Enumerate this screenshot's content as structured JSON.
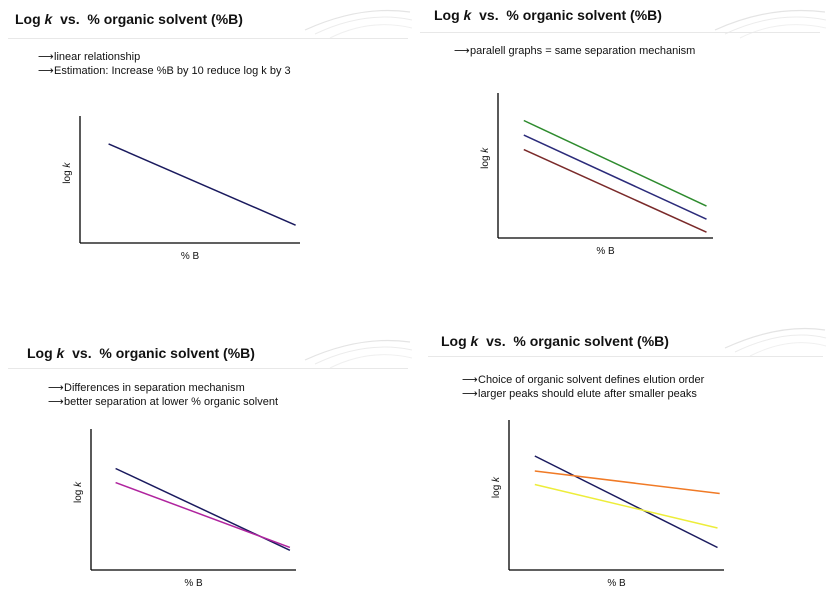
{
  "panels": [
    {
      "title_prefix": "Log ",
      "title_var": "k",
      "title_suffix": "  vs.  % organic solvent (%B)",
      "notes": [
        "linear relationship",
        "Estimation: Increase %B by 10 reduce log k by 3"
      ]
    },
    {
      "title_prefix": "Log ",
      "title_var": "k",
      "title_suffix": "  vs.  % organic solvent (%B)",
      "notes": [
        "paralell graphs = same separation mechanism"
      ]
    },
    {
      "title_prefix": "Log ",
      "title_var": "k",
      "title_suffix": "  vs.  % organic solvent (%B)",
      "notes": [
        "Differences in separation mechanism",
        "better separation at lower % organic solvent"
      ]
    },
    {
      "title_prefix": "Log ",
      "title_var": "k",
      "title_suffix": "  vs.  % organic solvent (%B)",
      "notes": [
        "Choice of organic solvent defines elution order",
        "larger peaks should elute after smaller peaks"
      ]
    }
  ],
  "arrow_glyph": "⟶",
  "chart_data": [
    {
      "type": "line",
      "xlabel": "% B",
      "ylabel_prefix": "log ",
      "ylabel_var": "k",
      "xlim": [
        0,
        100
      ],
      "ylim": [
        0,
        100
      ],
      "series": [
        {
          "color": "#1a1a5e",
          "x": [
            13,
            98
          ],
          "y": [
            78,
            14
          ]
        }
      ]
    },
    {
      "type": "line",
      "xlabel": "% B",
      "ylabel_prefix": "log ",
      "ylabel_var": "k",
      "xlim": [
        0,
        100
      ],
      "ylim": [
        0,
        100
      ],
      "series": [
        {
          "color": "#2e8b2e",
          "x": [
            12,
            97
          ],
          "y": [
            81,
            22
          ]
        },
        {
          "color": "#2b2b7a",
          "x": [
            12,
            97
          ],
          "y": [
            71,
            13
          ]
        },
        {
          "color": "#7a2a2a",
          "x": [
            12,
            97
          ],
          "y": [
            61,
            4
          ]
        }
      ]
    },
    {
      "type": "line",
      "xlabel": "% B",
      "ylabel_prefix": "log ",
      "ylabel_var": "k",
      "xlim": [
        0,
        100
      ],
      "ylim": [
        0,
        100
      ],
      "series": [
        {
          "color": "#1a1a5e",
          "x": [
            12,
            97
          ],
          "y": [
            72,
            14
          ]
        },
        {
          "color": "#b0249e",
          "x": [
            12,
            97
          ],
          "y": [
            62,
            16
          ]
        }
      ]
    },
    {
      "type": "line",
      "xlabel": "% B",
      "ylabel_prefix": "log ",
      "ylabel_var": "k",
      "xlim": [
        0,
        100
      ],
      "ylim": [
        0,
        100
      ],
      "series": [
        {
          "color": "#1a1a5e",
          "x": [
            12,
            97
          ],
          "y": [
            76,
            15
          ]
        },
        {
          "color": "#f07a26",
          "x": [
            12,
            98
          ],
          "y": [
            66,
            51
          ]
        },
        {
          "color": "#eded3a",
          "x": [
            12,
            97
          ],
          "y": [
            57,
            28
          ]
        }
      ]
    }
  ]
}
